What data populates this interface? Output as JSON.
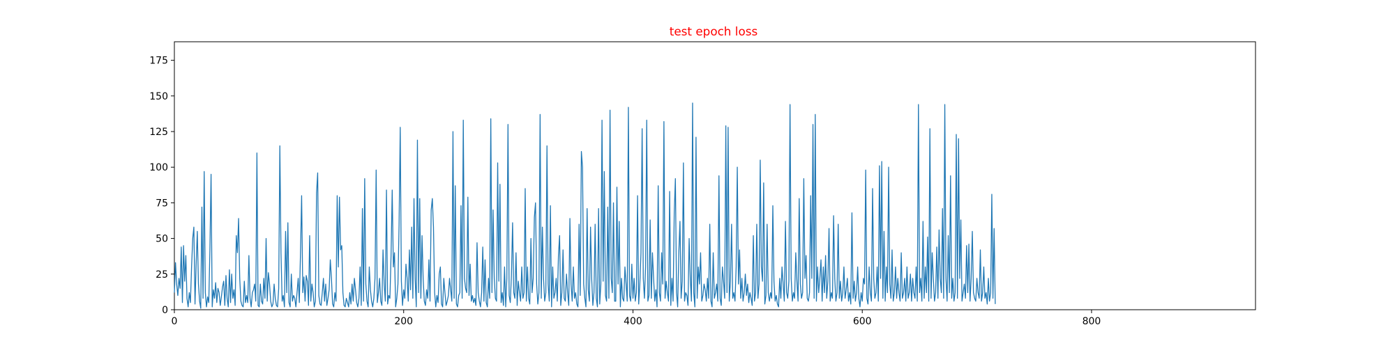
{
  "chart_data": {
    "type": "line",
    "title": "test epoch loss",
    "title_color": "#ff0000",
    "xlabel": "",
    "ylabel": "",
    "xlim": [
      0,
      943
    ],
    "ylim": [
      0,
      188
    ],
    "xticks": [
      0,
      200,
      400,
      600,
      800
    ],
    "yticks": [
      0,
      25,
      50,
      75,
      100,
      125,
      150,
      175
    ],
    "grid": false,
    "legend": "none",
    "line_color": "#1f77b4",
    "series": [
      {
        "values": [
          12,
          33,
          18,
          10,
          22,
          15,
          44,
          5,
          45,
          20,
          38,
          8,
          2,
          12,
          5,
          30,
          50,
          58,
          4,
          32,
          55,
          18,
          6,
          1,
          72,
          8,
          97,
          12,
          2,
          9,
          5,
          42,
          95,
          2,
          14,
          8,
          19,
          5,
          15,
          12,
          3,
          9,
          16,
          20,
          3,
          24,
          8,
          2,
          28,
          5,
          25,
          8,
          14,
          3,
          52,
          40,
          64,
          22,
          6,
          3,
          2,
          20,
          5,
          10,
          5,
          38,
          8,
          2,
          12,
          14,
          18,
          6,
          110,
          3,
          2,
          18,
          6,
          4,
          22,
          8,
          50,
          6,
          26,
          18,
          6,
          2,
          4,
          18,
          8,
          3,
          2,
          15,
          115,
          40,
          6,
          10,
          2,
          55,
          12,
          61,
          5,
          2,
          25,
          6,
          10,
          8,
          2,
          12,
          22,
          5,
          40,
          80,
          12,
          23,
          6,
          24,
          20,
          3,
          52,
          6,
          18,
          12,
          2,
          6,
          82,
          96,
          10,
          4,
          3,
          12,
          22,
          6,
          18,
          3,
          8,
          14,
          35,
          22,
          4,
          2,
          12,
          6,
          80,
          30,
          79,
          42,
          45,
          12,
          3,
          2,
          8,
          5,
          2,
          12,
          4,
          18,
          6,
          22,
          14,
          5,
          2,
          8,
          30,
          3,
          71,
          6,
          92,
          18,
          6,
          2,
          30,
          14,
          6,
          2,
          8,
          22,
          98,
          5,
          12,
          22,
          6,
          3,
          42,
          18,
          6,
          84,
          4,
          10,
          8,
          38,
          84,
          30,
          40,
          2,
          8,
          18,
          60,
          128,
          20,
          3,
          14,
          8,
          32,
          22,
          6,
          42,
          14,
          58,
          8,
          78,
          22,
          2,
          119,
          12,
          78,
          8,
          52,
          22,
          6,
          3,
          14,
          8,
          35,
          6,
          70,
          78,
          58,
          12,
          2,
          10,
          5,
          25,
          30,
          4,
          2,
          22,
          12,
          3,
          6,
          10,
          22,
          14,
          6,
          125,
          8,
          87,
          4,
          2,
          10,
          12,
          73,
          8,
          133,
          22,
          15,
          12,
          79,
          10,
          32,
          6,
          10,
          5,
          8,
          3,
          47,
          12,
          6,
          2,
          12,
          44,
          6,
          35,
          5,
          2,
          22,
          8,
          134,
          12,
          70,
          22,
          8,
          6,
          103,
          20,
          88,
          5,
          12,
          3,
          30,
          2,
          22,
          130,
          10,
          5,
          24,
          61,
          12,
          8,
          40,
          3,
          20,
          12,
          6,
          30,
          8,
          12,
          85,
          6,
          30,
          8,
          4,
          50,
          12,
          22,
          65,
          75,
          18,
          4,
          12,
          137,
          8,
          58,
          22,
          6,
          12,
          115,
          18,
          6,
          73,
          2,
          30,
          8,
          12,
          22,
          6,
          38,
          52,
          3,
          12,
          42,
          8,
          6,
          25,
          12,
          3,
          64,
          18,
          6,
          30,
          8,
          12,
          4,
          2,
          60,
          10,
          111,
          100,
          18,
          8,
          2,
          71,
          14,
          6,
          58,
          22,
          3,
          12,
          60,
          8,
          2,
          71,
          4,
          18,
          133,
          20,
          97,
          10,
          6,
          72,
          8,
          140,
          22,
          12,
          75,
          6,
          6,
          86,
          18,
          62,
          2,
          22,
          8,
          6,
          30,
          18,
          6,
          142,
          10,
          6,
          32,
          8,
          22,
          6,
          12,
          80,
          4,
          18,
          40,
          127,
          22,
          8,
          30,
          133,
          6,
          10,
          63,
          8,
          40,
          22,
          6,
          14,
          2,
          87,
          12,
          6,
          40,
          18,
          132,
          8,
          20,
          12,
          6,
          83,
          3,
          22,
          6,
          68,
          92,
          12,
          2,
          40,
          62,
          8,
          20,
          103,
          6,
          12,
          10,
          3,
          50,
          22,
          6,
          145,
          12,
          2,
          121,
          8,
          30,
          18,
          40,
          6,
          10,
          18,
          14,
          6,
          22,
          8,
          60,
          6,
          2,
          40,
          8,
          12,
          18,
          6,
          94,
          8,
          3,
          30,
          20,
          8,
          129,
          12,
          128,
          6,
          20,
          60,
          8,
          12,
          6,
          30,
          100,
          18,
          42,
          8,
          22,
          6,
          12,
          25,
          10,
          18,
          5,
          12,
          8,
          3,
          52,
          6,
          12,
          60,
          8,
          18,
          105,
          30,
          20,
          89,
          4,
          10,
          60,
          12,
          6,
          12,
          8,
          73,
          20,
          6,
          10,
          4,
          2,
          22,
          8,
          30,
          18,
          6,
          62,
          12,
          8,
          20,
          144,
          22,
          6,
          12,
          8,
          40,
          20,
          6,
          78,
          18,
          8,
          12,
          92,
          22,
          38,
          8,
          6,
          12,
          80,
          22,
          130,
          8,
          137,
          6,
          30,
          12,
          22,
          35,
          6,
          30,
          12,
          38,
          8,
          20,
          57,
          6,
          12,
          8,
          66,
          22,
          6,
          12,
          60,
          8,
          20,
          6,
          12,
          30,
          8,
          14,
          22,
          6,
          12,
          4,
          68,
          8,
          20,
          6,
          12,
          30,
          8,
          2,
          12,
          6,
          22,
          18,
          98,
          8,
          4,
          30,
          12,
          6,
          85,
          22,
          8,
          12,
          30,
          6,
          101,
          22,
          104,
          8,
          55,
          6,
          30,
          12,
          100,
          18,
          8,
          42,
          6,
          12,
          30,
          8,
          22,
          12,
          6,
          40,
          8,
          12,
          22,
          6,
          30,
          8,
          12,
          25,
          6,
          22,
          12,
          8,
          30,
          6,
          144,
          12,
          22,
          6,
          62,
          8,
          30,
          12,
          51,
          6,
          127,
          8,
          40,
          22,
          6,
          12,
          44,
          8,
          56,
          22,
          12,
          71,
          8,
          144,
          22,
          6,
          52,
          12,
          94,
          8,
          22,
          6,
          12,
          123,
          8,
          120,
          22,
          63,
          6,
          12,
          18,
          8,
          45,
          12,
          46,
          6,
          22,
          55,
          12,
          8,
          6,
          22,
          12,
          8,
          42,
          6,
          12,
          30,
          8,
          12,
          4,
          22,
          6,
          12,
          81,
          8,
          57,
          4
        ]
      }
    ]
  }
}
